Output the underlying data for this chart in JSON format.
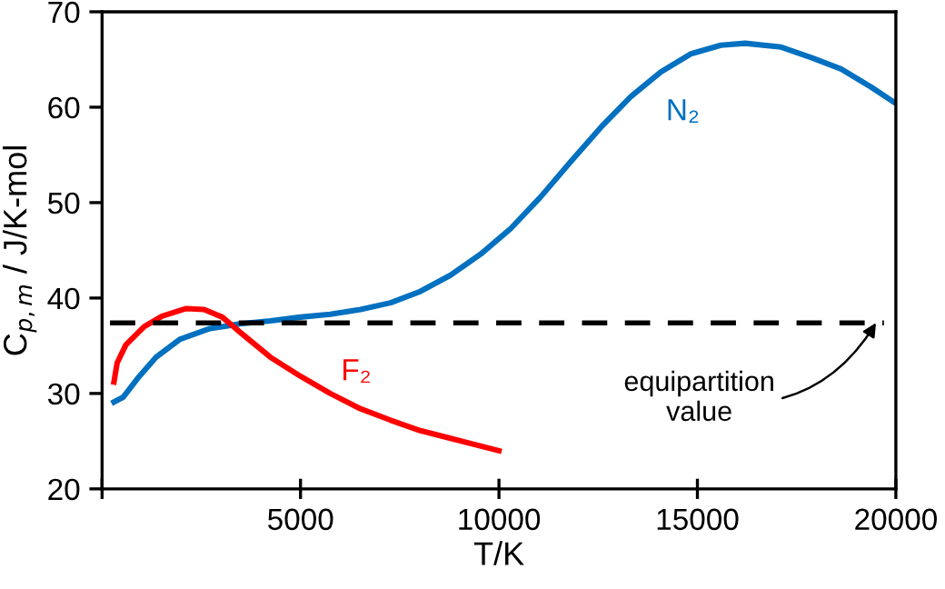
{
  "chart_data": {
    "type": "line",
    "xlabel": "T/K",
    "ylabel": "C$_{p,m}$ / J/K-mol",
    "xlim": [
      0,
      20000
    ],
    "xticks": [
      {
        "value": 0,
        "label": null
      },
      5000,
      10000,
      15000,
      20000
    ],
    "ylim": [
      20,
      70
    ],
    "yticks": [
      20,
      30,
      40,
      50,
      60,
      70
    ],
    "grid": false,
    "legend": false,
    "marker": "none",
    "line_style": "solid",
    "series": [
      {
        "name": "N₂",
        "color": "#0070c0",
        "x": [
          300,
          530,
          900,
          1360,
          1970,
          2720,
          3480,
          4240,
          5000,
          5750,
          6510,
          7270,
          8020,
          8780,
          9540,
          10300,
          11050,
          11810,
          12570,
          13320,
          14080,
          14840,
          15590,
          16200,
          17110,
          17870,
          18620,
          19380,
          20000
        ],
        "values": [
          29.1,
          29.6,
          31.6,
          33.8,
          35.7,
          36.8,
          37.3,
          37.6,
          38.0,
          38.3,
          38.8,
          39.5,
          40.7,
          42.4,
          44.6,
          47.3,
          50.6,
          54.3,
          57.9,
          61.1,
          63.7,
          65.6,
          66.5,
          66.7,
          66.3,
          65.2,
          64.0,
          62.1,
          60.4
        ]
      },
      {
        "name": "F₂",
        "color": "#ff0000",
        "x": [
          300,
          380,
          600,
          1060,
          1510,
          2120,
          2570,
          3030,
          3480,
          4240,
          5000,
          5750,
          6510,
          7270,
          8020,
          8780,
          10000
        ],
        "values": [
          31.2,
          33.2,
          35.1,
          37.0,
          38.1,
          38.9,
          38.8,
          38.0,
          36.4,
          33.8,
          31.8,
          30.0,
          28.4,
          27.2,
          26.1,
          25.3,
          24.0
        ]
      }
    ],
    "ref_lines": [
      {
        "axis": "y",
        "value": 37.4,
        "color": "#000000",
        "line_style": "dashed"
      }
    ],
    "annotations": [
      {
        "text": "equipartition\nvalue",
        "x": 19500,
        "y": 37.4
      }
    ]
  }
}
